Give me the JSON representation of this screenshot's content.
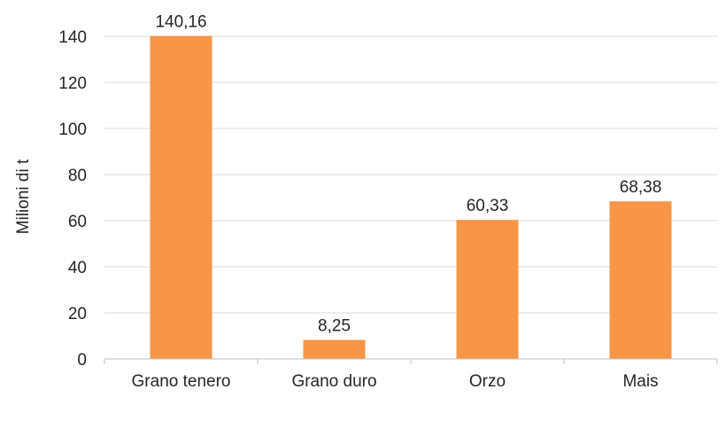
{
  "chart_data": {
    "type": "bar",
    "categories": [
      "Grano tenero",
      "Grano duro",
      "Orzo",
      "Mais"
    ],
    "values": [
      140.16,
      8.25,
      60.33,
      68.38
    ],
    "data_labels": [
      "140,16",
      "8,25",
      "60,33",
      "68,38"
    ],
    "y_ticks": [
      0,
      20,
      40,
      60,
      80,
      100,
      120,
      140
    ],
    "title": "",
    "xlabel": "",
    "ylabel": "Milioni di t",
    "ylim": [
      0,
      140
    ],
    "grid": true,
    "legend": "none",
    "bar_color": "#f79646"
  }
}
